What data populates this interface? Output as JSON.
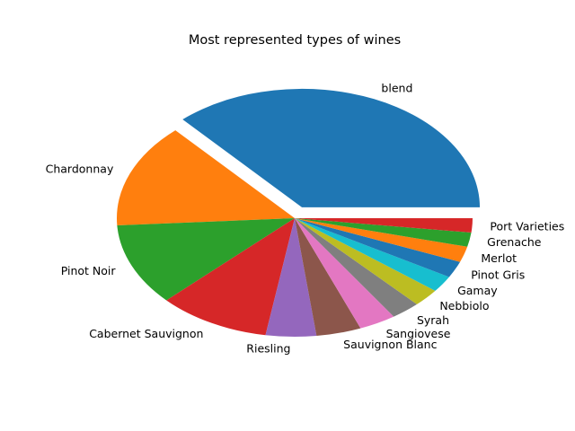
{
  "chart_data": {
    "type": "pie",
    "title": "Most represented types of wines",
    "categories": [
      "blend",
      "Chardonnay",
      "Pinot Noir",
      "Cabernet Sauvignon",
      "Riesling",
      "Sauvignon Blanc",
      "Sangiovese",
      "Syrah",
      "Nebbiolo",
      "Gamay",
      "Pinot Gris",
      "Merlot",
      "Grenache",
      "Port Varieties"
    ],
    "values": [
      36.0,
      14.0,
      11.0,
      10.0,
      4.5,
      4.0,
      3.3,
      2.6,
      2.4,
      2.2,
      2.2,
      2.1,
      1.9,
      1.9
    ],
    "colors": [
      "#1f77b4",
      "#ff7f0e",
      "#2ca02c",
      "#d62728",
      "#9467bd",
      "#8c564b",
      "#e377c2",
      "#7f7f7f",
      "#bcbd22",
      "#17becf",
      "#1f77b4",
      "#ff7f0e",
      "#2ca02c",
      "#d62728"
    ],
    "explode": [
      0.1,
      0,
      0,
      0,
      0,
      0,
      0,
      0,
      0,
      0,
      0,
      0,
      0,
      0
    ],
    "start_angle_deg": 0,
    "direction": "counterclockwise",
    "legend": "none"
  }
}
